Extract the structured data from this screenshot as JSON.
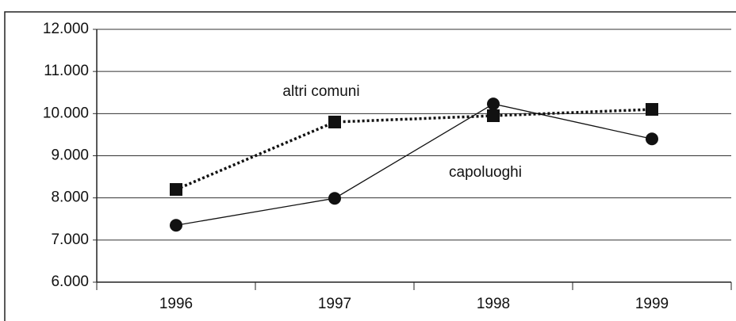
{
  "chart_data": {
    "type": "line",
    "categories": [
      "1996",
      "1997",
      "1998",
      "1999"
    ],
    "series": [
      {
        "name": "capoluoghi",
        "color": "#111111",
        "marker": "circle",
        "line_style": "solid",
        "values": [
          7350,
          7990,
          10230,
          9400
        ]
      },
      {
        "name": "altri comuni",
        "color": "#111111",
        "marker": "square",
        "line_style": "dotted",
        "values": [
          8200,
          9800,
          9950,
          10100
        ]
      }
    ],
    "ylim": [
      6000,
      12000
    ],
    "yticks": [
      {
        "value": 6000,
        "label": "6.000"
      },
      {
        "value": 7000,
        "label": "7.000"
      },
      {
        "value": 8000,
        "label": "8.000"
      },
      {
        "value": 9000,
        "label": "9.000"
      },
      {
        "value": 10000,
        "label": "10.000"
      },
      {
        "value": 11000,
        "label": "11.000"
      },
      {
        "value": 12000,
        "label": "12.000"
      }
    ],
    "grid": true
  }
}
